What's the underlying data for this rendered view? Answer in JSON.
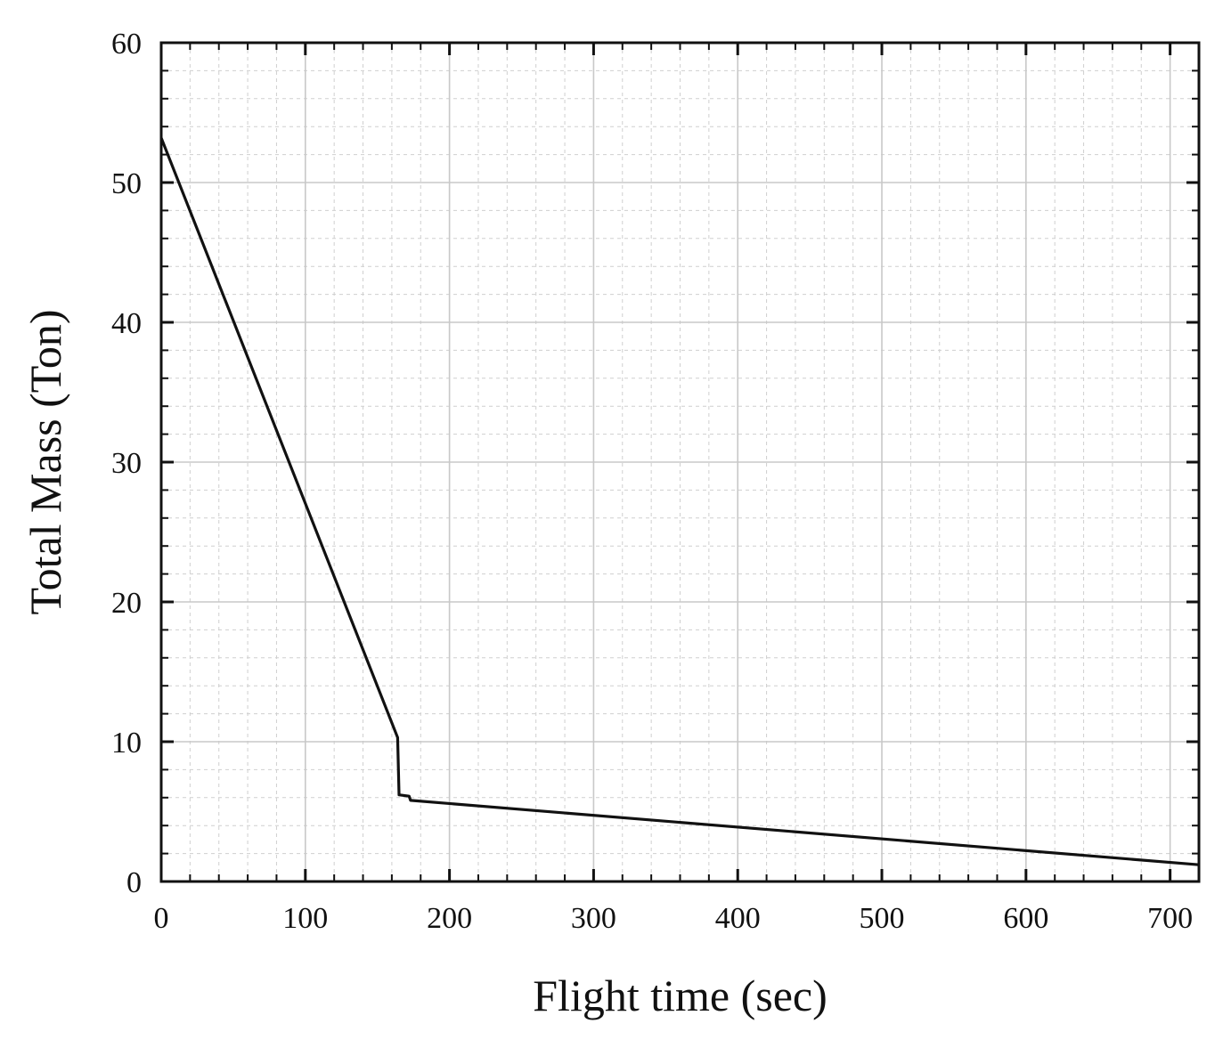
{
  "chart_data": {
    "type": "line",
    "xlabel": "Flight time (sec)",
    "ylabel": "Total Mass (Ton)",
    "xlim": [
      0,
      720
    ],
    "ylim": [
      0,
      60
    ],
    "x_ticks": [
      0,
      100,
      200,
      300,
      400,
      500,
      600,
      700
    ],
    "y_ticks": [
      0,
      10,
      20,
      30,
      40,
      50,
      60
    ],
    "x_minor_step": 20,
    "y_minor_step": 2,
    "grid": true,
    "series": [
      {
        "x": [
          0,
          164,
          165,
          172,
          173,
          720
        ],
        "y": [
          53.2,
          10.3,
          6.2,
          6.1,
          5.8,
          1.2
        ]
      }
    ]
  }
}
